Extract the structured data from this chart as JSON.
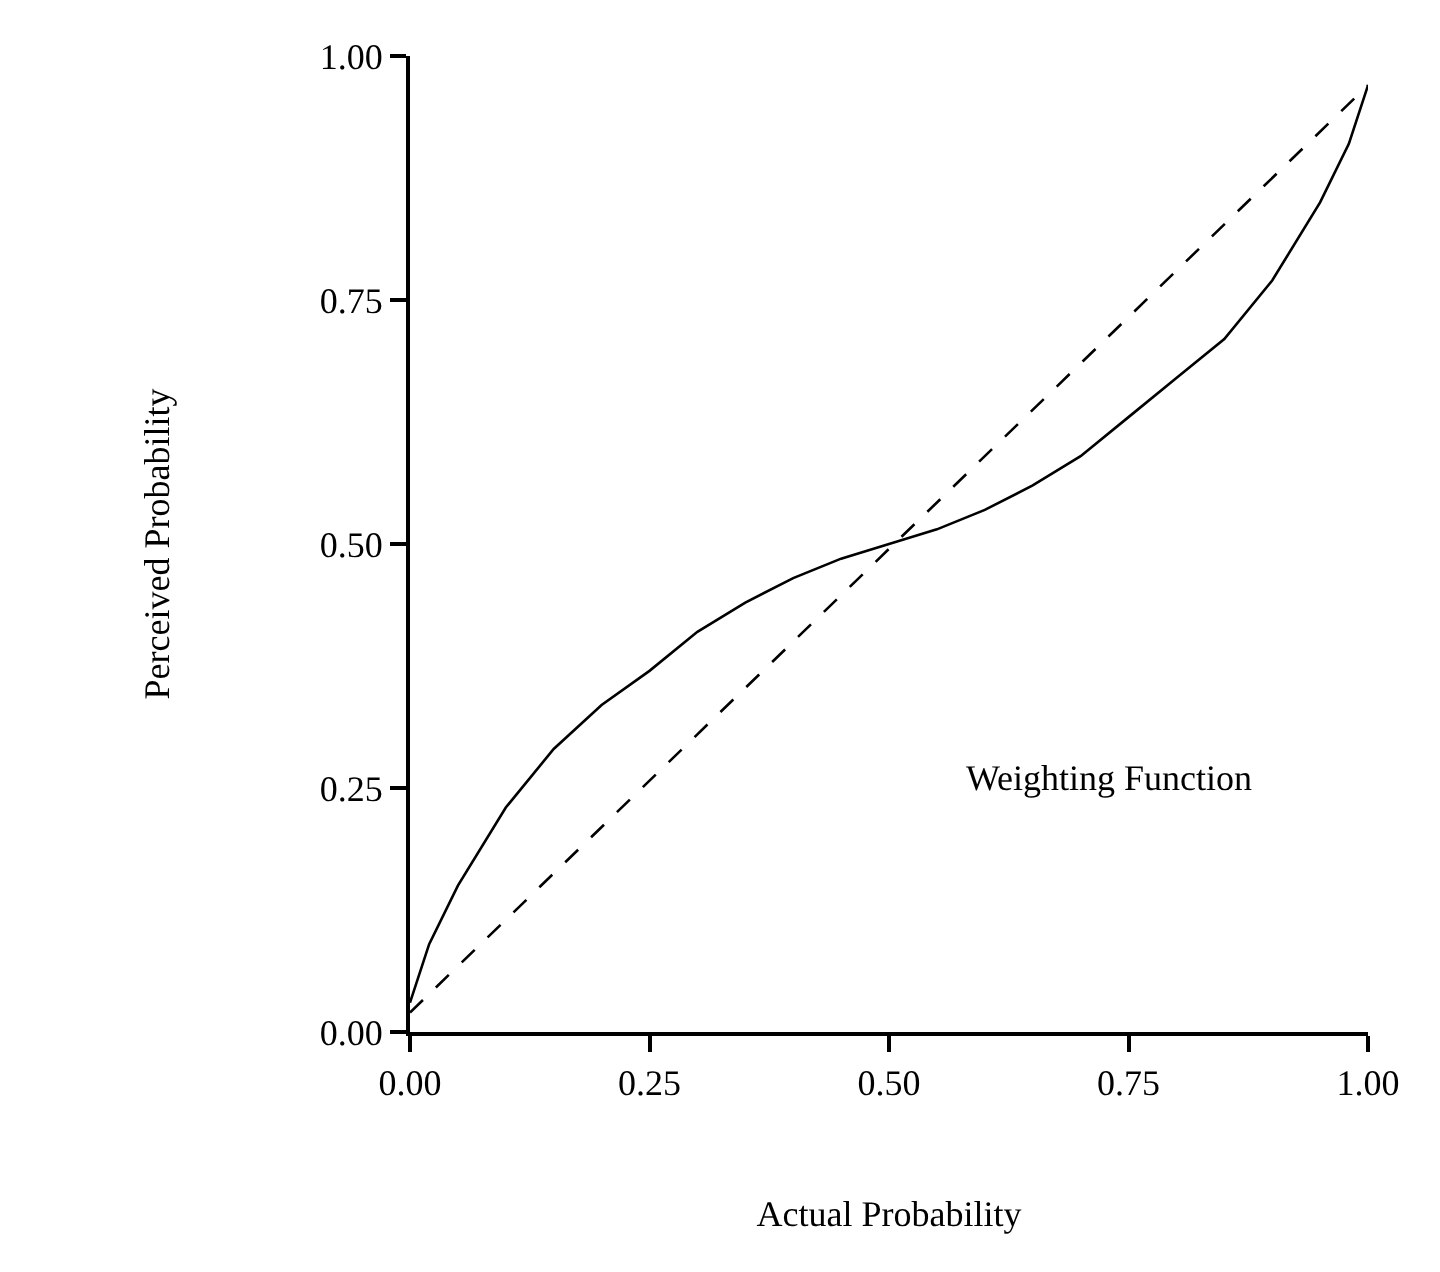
{
  "chart_data": {
    "type": "line",
    "xlabel": "Actual Probability",
    "ylabel": "Perceived Probability",
    "annotations": [
      "Weighting Function"
    ],
    "xlim": [
      0,
      1
    ],
    "ylim": [
      0,
      1
    ],
    "xticks": [
      {
        "value": 0,
        "label": "0.00"
      },
      {
        "value": 0.25,
        "label": "0.25"
      },
      {
        "value": 0.5,
        "label": "0.50"
      },
      {
        "value": 0.75,
        "label": "0.75"
      },
      {
        "value": 1,
        "label": "1.00"
      }
    ],
    "yticks": [
      {
        "value": 0,
        "label": "0.00"
      },
      {
        "value": 0.25,
        "label": "0.25"
      },
      {
        "value": 0.5,
        "label": "0.50"
      },
      {
        "value": 0.75,
        "label": "0.75"
      },
      {
        "value": 1,
        "label": "1.00"
      }
    ],
    "grid": false,
    "marker": "none",
    "series": [
      {
        "color": "#000000",
        "line_style": "solid",
        "x": [
          0,
          0.02,
          0.05,
          0.1,
          0.15,
          0.2,
          0.25,
          0.3,
          0.35,
          0.4,
          0.45,
          0.5,
          0.55,
          0.6,
          0.65,
          0.7,
          0.75,
          0.8,
          0.85,
          0.9,
          0.95,
          0.98,
          1.0
        ],
        "values": [
          0.03,
          0.09,
          0.15,
          0.23,
          0.29,
          0.335,
          0.37,
          0.41,
          0.44,
          0.465,
          0.485,
          0.5,
          0.515,
          0.535,
          0.56,
          0.59,
          0.63,
          0.67,
          0.71,
          0.77,
          0.85,
          0.91,
          0.97
        ]
      },
      {
        "color": "#000000",
        "line_style": "dashed",
        "x": [
          0,
          1
        ],
        "values": [
          0.02,
          0.97
        ]
      }
    ]
  }
}
